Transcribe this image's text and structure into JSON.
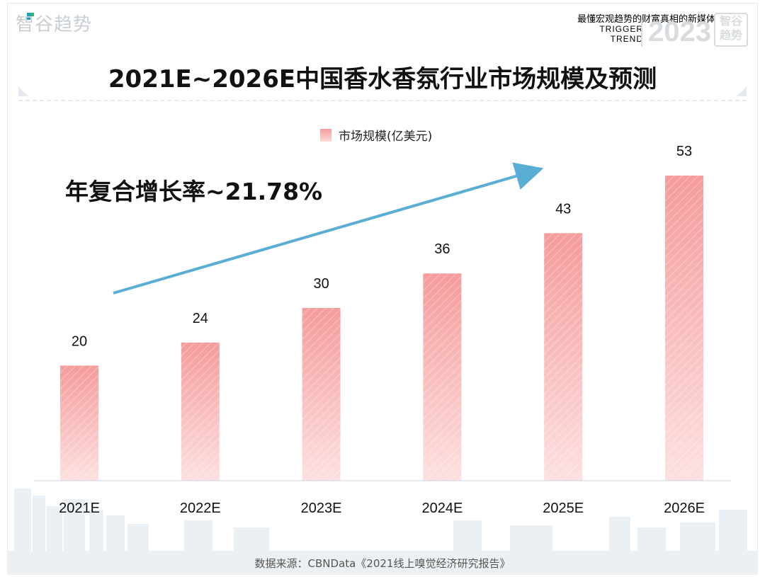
{
  "watermark": {
    "brand": "智谷趋势",
    "tagline": "最懂宏观趋势的财富真相的新媒体",
    "trigger": "TRIGGER",
    "trend": "TREND",
    "year": "2023",
    "badge_top": "智谷",
    "badge_bottom": "趋势"
  },
  "cagr_label": "年复合增长率~21.78%",
  "footer": {
    "source": "数据来源：CBNData《2021线上嗅觉经济研究报告》"
  },
  "colors": {
    "bar_top": "#f59b9b",
    "bar_bottom": "#fde0e0",
    "arrow": "#5aaed6"
  },
  "chart_data": {
    "type": "bar",
    "title": "2021E~2026E中国香水香氛行业市场规模及预测",
    "legend": [
      "市场规模(亿美元)"
    ],
    "categories": [
      "2021E",
      "2022E",
      "2023E",
      "2024E",
      "2025E",
      "2026E"
    ],
    "series": [
      {
        "name": "市场规模(亿美元)",
        "values": [
          20,
          24,
          30,
          36,
          43,
          53
        ]
      }
    ],
    "data_labels": [
      "20",
      "24",
      "30",
      "36",
      "43",
      "53"
    ],
    "xlabel": "",
    "ylabel": "",
    "ylim": [
      0,
      53
    ],
    "grid": false,
    "legend_position": "top-center"
  }
}
